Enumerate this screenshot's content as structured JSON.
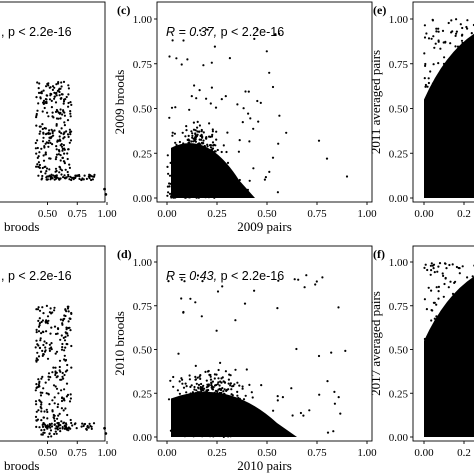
{
  "chart_data": [
    {
      "id": "a",
      "type": "scatter",
      "panel_label": "",
      "annotation": {
        "r_text": "",
        "p_text": ", p < 2.2e-16"
      },
      "xlabel": "broods",
      "ylabel": "",
      "xticks": [
        "0.50",
        "0.75",
        "1.00"
      ],
      "yticks": [],
      "xlim": [
        0.0,
        1.0
      ],
      "ylim": [
        0.0,
        1.0
      ]
    },
    {
      "id": "c",
      "type": "scatter",
      "panel_label": "(c)",
      "annotation": {
        "r_text": "R = 0.37, ",
        "p_text": "p < 2.2e-16"
      },
      "xlabel": "2009 pairs",
      "ylabel": "2009 broods",
      "xticks": [
        "0.00",
        "0.25",
        "0.50",
        "0.75",
        "1.00"
      ],
      "yticks": [
        "0.00",
        "0.25",
        "0.50",
        "0.75",
        "1.00"
      ],
      "xlim": [
        0.0,
        1.0
      ],
      "ylim": [
        0.0,
        1.0
      ]
    },
    {
      "id": "e",
      "type": "scatter",
      "panel_label": "(e)",
      "annotation": {
        "r_text": "",
        "p_text": ""
      },
      "xlabel": "",
      "ylabel": "2011 averaged pairs",
      "xticks": [
        "0.00",
        "0.2"
      ],
      "yticks": [
        "0.00",
        "0.25",
        "0.50",
        "0.75",
        "1.00"
      ],
      "xlim": [
        0.0,
        1.0
      ],
      "ylim": [
        0.0,
        1.0
      ]
    },
    {
      "id": "b",
      "type": "scatter",
      "panel_label": "",
      "annotation": {
        "r_text": "",
        "p_text": ", p < 2.2e-16"
      },
      "xlabel": "broods",
      "ylabel": "",
      "xticks": [
        "0.50",
        "0.75",
        "1.00"
      ],
      "yticks": [],
      "xlim": [
        0.0,
        1.0
      ],
      "ylim": [
        0.0,
        1.0
      ]
    },
    {
      "id": "d",
      "type": "scatter",
      "panel_label": "(d)",
      "annotation": {
        "r_text": "R = 0.43, ",
        "p_text": "p < 2.2e-16"
      },
      "xlabel": "2010 pairs",
      "ylabel": "2010 broods",
      "xticks": [
        "0.00",
        "0.25",
        "0.50",
        "0.75",
        "1.00"
      ],
      "yticks": [
        "0.00",
        "0.25",
        "0.50",
        "0.75",
        "1.00"
      ],
      "xlim": [
        0.0,
        1.0
      ],
      "ylim": [
        0.0,
        1.0
      ]
    },
    {
      "id": "f",
      "type": "scatter",
      "panel_label": "(f)",
      "annotation": {
        "r_text": "",
        "p_text": ""
      },
      "xlabel": "",
      "ylabel": "2017 averaged pairs",
      "xticks": [
        "0.00",
        "0.2"
      ],
      "yticks": [
        "0.00",
        "0.25",
        "0.50",
        "0.75",
        "1.00"
      ],
      "xlim": [
        0.0,
        1.0
      ],
      "ylim": [
        0.0,
        1.0
      ]
    }
  ]
}
